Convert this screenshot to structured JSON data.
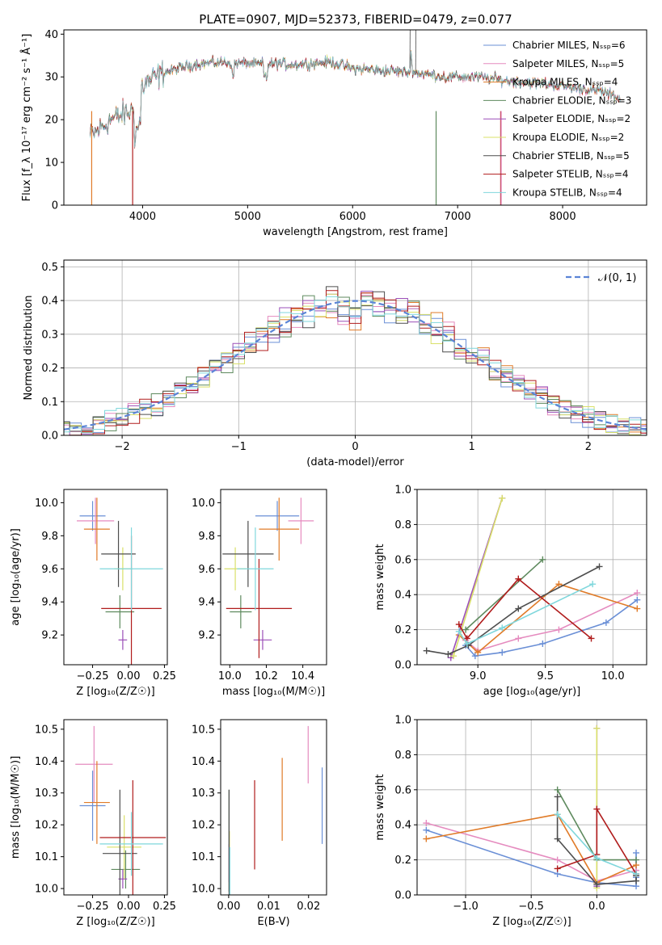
{
  "title": "PLATE=0907, MJD=52373, FIBERID=0479, z=0.077",
  "colors": [
    "#6a8fd6",
    "#e58bbf",
    "#e07b28",
    "#5e8a5e",
    "#9b4fb8",
    "#d9e06a",
    "#4d4d4d",
    "#b01c1c",
    "#7fd7dc"
  ],
  "chart_data": [
    {
      "id": "spectrum",
      "type": "line",
      "xlabel": "wavelength [Angstrom, rest frame]",
      "ylabel": "Flux [f_λ 10⁻¹⁷ erg cm⁻² s⁻¹ Å⁻¹]",
      "xlim": [
        3250,
        8800
      ],
      "ylim": [
        0,
        41
      ],
      "xticks": [
        "4000",
        "5000",
        "6000",
        "7000",
        "8000"
      ],
      "yticks": [
        "0",
        "10",
        "20",
        "30",
        "40"
      ],
      "legend": "top-right",
      "series": [
        {
          "name": "Chabrier MILES, N_SSP=6"
        },
        {
          "name": "Salpeter MILES, N_SSP=5"
        },
        {
          "name": "Kroupa MILES, N_SSP=4"
        },
        {
          "name": "Chabrier ELODIE, N_SSP=3"
        },
        {
          "name": "Salpeter ELODIE, N_SSP=2"
        },
        {
          "name": "Kroupa ELODIE, N_SSP=2"
        },
        {
          "name": "Chabrier STELIB, N_SSP=5"
        },
        {
          "name": "Salpeter STELIB, N_SSP=4"
        },
        {
          "name": "Kroupa STELIB, N_SSP=4"
        }
      ],
      "continuum": [
        [
          3500,
          16
        ],
        [
          3700,
          20
        ],
        [
          3900,
          22
        ],
        [
          4000,
          28
        ],
        [
          4200,
          31
        ],
        [
          4500,
          33
        ],
        [
          4800,
          33.5
        ],
        [
          5100,
          33
        ],
        [
          5500,
          33
        ],
        [
          5800,
          33.5
        ],
        [
          6000,
          32
        ],
        [
          6300,
          31.5
        ],
        [
          6600,
          31
        ],
        [
          6900,
          30
        ],
        [
          7200,
          30
        ],
        [
          7500,
          29
        ],
        [
          7800,
          28.5
        ],
        [
          8100,
          27.5
        ],
        [
          8400,
          26.5
        ],
        [
          8550,
          25
        ]
      ]
    },
    {
      "id": "residuals",
      "type": "line",
      "xlabel": "(data-model)/error",
      "ylabel": "Normed distribution",
      "xlim": [
        -2.5,
        2.5
      ],
      "ylim": [
        0,
        0.52
      ],
      "xticks": [
        "−2",
        "−1",
        "0",
        "1",
        "2"
      ],
      "yticks": [
        "0.0",
        "0.1",
        "0.2",
        "0.3",
        "0.4",
        "0.5"
      ],
      "legend": "top-right",
      "reference": {
        "name": "𝒩(0, 1)",
        "mean": 0,
        "sigma": 1
      },
      "bin_width": 0.1
    },
    {
      "id": "age-vs-Z",
      "type": "scatter",
      "xlabel": "Z [log₁₀(Z/Z☉)]",
      "ylabel": "age  [log₁₀(age/yr)]",
      "xlim": [
        -0.45,
        0.27
      ],
      "ylim": [
        9.02,
        10.08
      ],
      "xticks": [
        "−0.25",
        "0.00",
        "0.25"
      ],
      "yticks": [
        "9.2",
        "9.4",
        "9.6",
        "9.8",
        "10.0"
      ],
      "points": [
        {
          "x": -0.25,
          "y": 9.92,
          "xerr": 0.09,
          "yerr": 0.09
        },
        {
          "x": -0.23,
          "y": 9.89,
          "xerr": 0.13,
          "yerr": 0.14
        },
        {
          "x": -0.22,
          "y": 9.84,
          "xerr": 0.09,
          "yerr": 0.19
        },
        {
          "x": -0.06,
          "y": 9.34,
          "xerr": 0.1,
          "yerr": 0.1
        },
        {
          "x": -0.04,
          "y": 9.17,
          "xerr": 0.03,
          "yerr": 0.06
        },
        {
          "x": -0.04,
          "y": 9.6,
          "xerr": 0.06,
          "yerr": 0.13
        },
        {
          "x": -0.07,
          "y": 9.69,
          "xerr": 0.12,
          "yerr": 0.2
        },
        {
          "x": 0.02,
          "y": 9.36,
          "xerr": 0.21,
          "yerr": 0.44
        },
        {
          "x": 0.02,
          "y": 9.6,
          "xerr": 0.22,
          "yerr": 0.25
        }
      ]
    },
    {
      "id": "age-vs-mass",
      "type": "scatter",
      "xlabel": "mass [log₁₀(M/M☉)]",
      "ylabel": "",
      "xlim": [
        9.95,
        10.53
      ],
      "ylim": [
        9.02,
        10.08
      ],
      "xticks": [
        "10.0",
        "10.2",
        "10.4"
      ],
      "yticks": [
        "9.2",
        "9.4",
        "9.6",
        "9.8",
        "10.0"
      ],
      "points": [
        {
          "x": 10.26,
          "y": 9.92,
          "xerr": 0.12,
          "yerr": 0.09
        },
        {
          "x": 10.39,
          "y": 9.89,
          "xerr": 0.07,
          "yerr": 0.14
        },
        {
          "x": 10.27,
          "y": 9.84,
          "xerr": 0.11,
          "yerr": 0.19
        },
        {
          "x": 10.06,
          "y": 9.34,
          "xerr": 0.06,
          "yerr": 0.1
        },
        {
          "x": 10.18,
          "y": 9.17,
          "xerr": 0.05,
          "yerr": 0.06
        },
        {
          "x": 10.03,
          "y": 9.6,
          "xerr": 0.06,
          "yerr": 0.13
        },
        {
          "x": 10.1,
          "y": 9.69,
          "xerr": 0.14,
          "yerr": 0.2
        },
        {
          "x": 10.16,
          "y": 9.36,
          "xerr": 0.18,
          "yerr": 0.3
        },
        {
          "x": 10.14,
          "y": 9.6,
          "xerr": 0.1,
          "yerr": 0.25
        }
      ]
    },
    {
      "id": "weight-vs-age",
      "type": "line",
      "xlabel": "age  [log₁₀(age/yr)]",
      "ylabel": "mass weight",
      "xlim": [
        8.55,
        10.25
      ],
      "ylim": [
        0,
        1
      ],
      "xticks": [
        "9.0",
        "9.5",
        "10.0"
      ],
      "yticks": [
        "0.0",
        "0.2",
        "0.4",
        "0.6",
        "0.8",
        "1.0"
      ],
      "series": [
        {
          "x": [
            8.91,
            8.98,
            9.18,
            9.48,
            9.95,
            10.18
          ],
          "y": [
            0.11,
            0.05,
            0.07,
            0.12,
            0.24,
            0.37
          ]
        },
        {
          "x": [
            8.91,
            9.0,
            9.3,
            9.6,
            10.18
          ],
          "y": [
            0.14,
            0.08,
            0.15,
            0.2,
            0.41
          ]
        },
        {
          "x": [
            8.86,
            9.0,
            9.6,
            10.18
          ],
          "y": [
            0.17,
            0.07,
            0.46,
            0.32
          ]
        },
        {
          "x": [
            8.91,
            9.48
          ],
          "y": [
            0.2,
            0.6
          ]
        },
        {
          "x": [
            8.8,
            9.18
          ],
          "y": [
            0.04,
            0.95
          ]
        },
        {
          "x": [
            8.82,
            9.18
          ],
          "y": [
            0.05,
            0.95
          ]
        },
        {
          "x": [
            8.62,
            8.78,
            8.93,
            9.3,
            9.9
          ],
          "y": [
            0.08,
            0.06,
            0.11,
            0.32,
            0.56
          ]
        },
        {
          "x": [
            8.86,
            8.92,
            9.3,
            9.84
          ],
          "y": [
            0.23,
            0.15,
            0.49,
            0.15
          ]
        },
        {
          "x": [
            8.86,
            8.92,
            9.18,
            9.85
          ],
          "y": [
            0.19,
            0.12,
            0.21,
            0.46
          ]
        }
      ]
    },
    {
      "id": "mass-vs-Z",
      "type": "scatter",
      "xlabel": "Z [log₁₀(Z/Z☉)]",
      "ylabel": "mass [log₁₀(M/M☉)]",
      "xlim": [
        -0.45,
        0.27
      ],
      "ylim": [
        9.98,
        10.53
      ],
      "xticks": [
        "−0.25",
        "0.00",
        "0.25"
      ],
      "yticks": [
        "10.0",
        "10.1",
        "10.2",
        "10.3",
        "10.4",
        "10.5"
      ],
      "points": [
        {
          "x": -0.25,
          "y": 10.26,
          "xerr": 0.09,
          "yerr": 0.11
        },
        {
          "x": -0.24,
          "y": 10.39,
          "xerr": 0.13,
          "yerr": 0.12
        },
        {
          "x": -0.22,
          "y": 10.27,
          "xerr": 0.09,
          "yerr": 0.13
        },
        {
          "x": -0.02,
          "y": 10.06,
          "xerr": 0.1,
          "yerr": 0.06
        },
        {
          "x": -0.04,
          "y": 10.03,
          "xerr": 0.03,
          "yerr": 0.03
        },
        {
          "x": -0.03,
          "y": 10.13,
          "xerr": 0.12,
          "yerr": 0.1
        },
        {
          "x": -0.06,
          "y": 10.11,
          "xerr": 0.12,
          "yerr": 0.2
        },
        {
          "x": 0.03,
          "y": 10.16,
          "xerr": 0.23,
          "yerr": 0.18
        },
        {
          "x": 0.02,
          "y": 10.14,
          "xerr": 0.22,
          "yerr": 0.1
        }
      ]
    },
    {
      "id": "mass-vs-EBV",
      "type": "scatter",
      "xlabel": "E(B-V)",
      "ylabel": "",
      "xlim": [
        -0.002,
        0.0245
      ],
      "ylim": [
        9.98,
        10.53
      ],
      "xticks": [
        "0.00",
        "0.01",
        "0.02"
      ],
      "yticks": [
        "10.0",
        "10.1",
        "10.2",
        "10.3",
        "10.4",
        "10.5"
      ],
      "points": [
        {
          "x": 0.0234,
          "y": 10.26,
          "yerr": 0.12
        },
        {
          "x": 0.0199,
          "y": 10.42,
          "yerr": 0.09
        },
        {
          "x": 0.0134,
          "y": 10.28,
          "yerr": 0.13
        },
        {
          "x": 0.0001,
          "y": 10.15,
          "yerr": 0.16
        },
        {
          "x": 0.0001,
          "y": 10.08,
          "yerr": 0.06
        },
        {
          "x": 0.0002,
          "y": 10.1,
          "yerr": 0.08
        },
        {
          "x": 0.0001,
          "y": 10.14,
          "yerr": 0.17
        },
        {
          "x": 0.0065,
          "y": 10.2,
          "yerr": 0.14
        },
        {
          "x": 0.0003,
          "y": 10.05,
          "yerr": 0.08
        }
      ]
    },
    {
      "id": "weight-vs-Z",
      "type": "line",
      "xlabel": "Z [log₁₀(Z/Z☉)]",
      "ylabel": "mass weight",
      "xlim": [
        -1.37,
        0.38
      ],
      "ylim": [
        0,
        1
      ],
      "xticks": [
        "−1.0",
        "−0.5",
        "0.0"
      ],
      "yticks": [
        "0.0",
        "0.2",
        "0.4",
        "0.6",
        "0.8",
        "1.0"
      ],
      "series": [
        {
          "x": [
            -1.3,
            -0.3,
            0.0,
            0.3,
            0.3,
            0.3
          ],
          "y": [
            0.37,
            0.12,
            0.07,
            0.05,
            0.1,
            0.24
          ]
        },
        {
          "x": [
            -1.3,
            -0.3,
            0.0,
            0.3
          ],
          "y": [
            0.41,
            0.2,
            0.08,
            0.14
          ]
        },
        {
          "x": [
            -1.3,
            -0.3,
            0.0,
            0.3
          ],
          "y": [
            0.32,
            0.46,
            0.07,
            0.17
          ]
        },
        {
          "x": [
            -0.3,
            0.0,
            0.3
          ],
          "y": [
            0.6,
            0.2,
            0.2
          ]
        },
        {
          "x": [
            0.0,
            0.0
          ],
          "y": [
            0.05,
            0.95
          ]
        },
        {
          "x": [
            0.0,
            0.0
          ],
          "y": [
            0.04,
            0.95
          ]
        },
        {
          "x": [
            -0.3,
            -0.3,
            0.0,
            0.3,
            0.3
          ],
          "y": [
            0.56,
            0.32,
            0.06,
            0.08,
            0.11
          ]
        },
        {
          "x": [
            -0.3,
            0.0,
            0.0,
            0.3
          ],
          "y": [
            0.15,
            0.23,
            0.49,
            0.12
          ]
        },
        {
          "x": [
            -0.3,
            0.0,
            0.3
          ],
          "y": [
            0.46,
            0.21,
            0.12
          ]
        }
      ]
    }
  ]
}
